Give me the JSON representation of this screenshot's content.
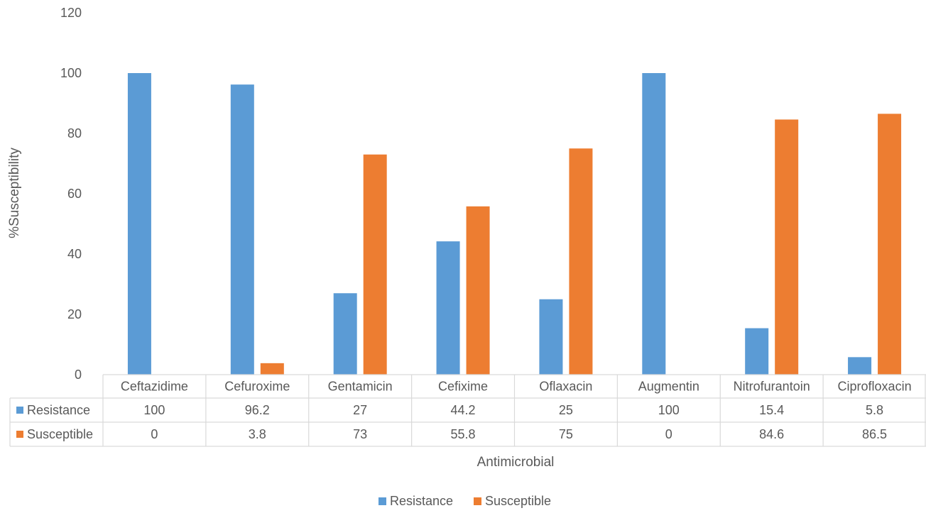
{
  "chart_data": {
    "type": "bar",
    "title": "",
    "xlabel": "Antimicrobial",
    "ylabel": "%Susceptibility",
    "ylim": [
      0,
      120
    ],
    "yticks": [
      0,
      20,
      40,
      60,
      80,
      100,
      120
    ],
    "grid": false,
    "legend_position": "bottom",
    "data_table": true,
    "categories": [
      "Ceftazidime",
      "Cefuroxime",
      "Gentamicin",
      "Cefixime",
      "Oflaxacin",
      "Augmentin",
      "Nitrofurantoin",
      "Ciprofloxacin"
    ],
    "series": [
      {
        "name": "Resistance",
        "color": "#5B9BD5",
        "values": [
          100,
          96.2,
          27,
          44.2,
          25,
          100,
          15.4,
          5.8
        ],
        "labels": [
          "100",
          "96.2",
          "27",
          "44.2",
          "25",
          "100",
          "15.4",
          "5.8"
        ]
      },
      {
        "name": "Susceptible",
        "color": "#ED7D31",
        "values": [
          0,
          3.8,
          73,
          55.8,
          75,
          0,
          84.6,
          86.5
        ],
        "labels": [
          "0",
          "3.8",
          "73",
          "55.8",
          "75",
          "0",
          "84.6",
          "86.5"
        ]
      }
    ]
  }
}
